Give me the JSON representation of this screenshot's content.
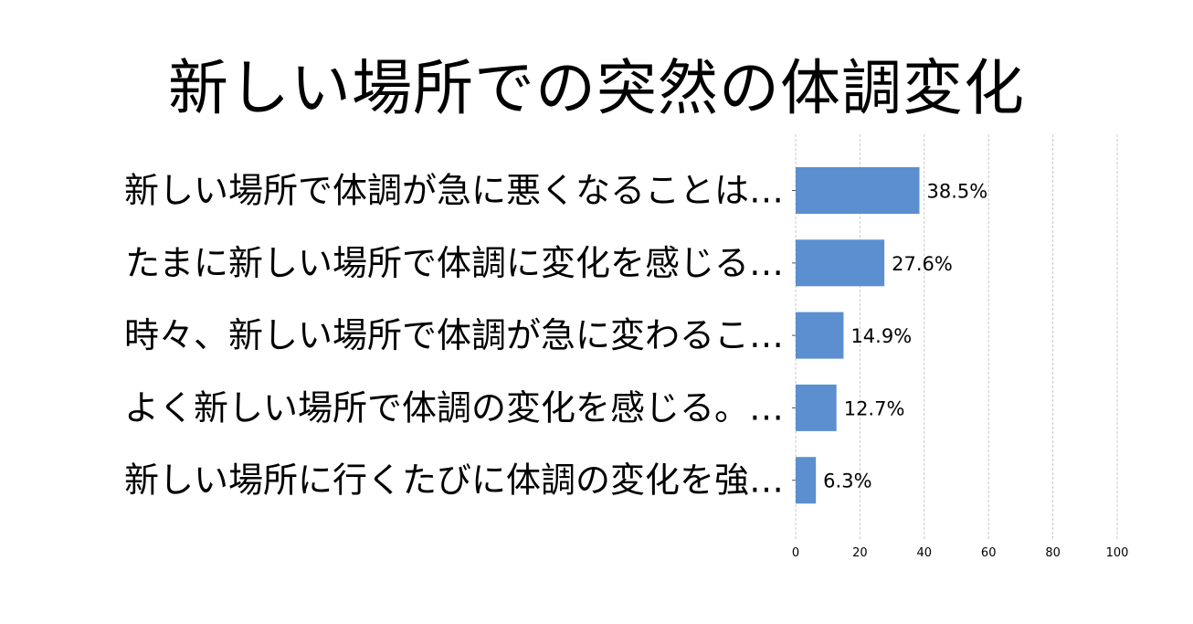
{
  "chart_data": {
    "type": "bar",
    "orientation": "horizontal",
    "title": "新しい場所での突然の体調変化",
    "categories": [
      "新しい場所で体調が急に悪くなることは…",
      "たまに新しい場所で体調に変化を感じる…",
      "時々、新しい場所で体調が急に変わるこ…",
      "よく新しい場所で体調の変化を感じる。…",
      "新しい場所に行くたびに体調の変化を強…"
    ],
    "values": [
      38.5,
      27.6,
      14.9,
      12.7,
      6.3
    ],
    "value_labels": [
      "38.5%",
      "27.6%",
      "14.9%",
      "12.7%",
      "6.3%"
    ],
    "xlim": [
      0,
      100
    ],
    "xticks": [
      "0",
      "20",
      "40",
      "60",
      "80",
      "100"
    ],
    "grid": "vertical, dashed",
    "bar_color": "#5b8fd0",
    "grid_color": "#c8c8c8",
    "xlabel": "",
    "ylabel": ""
  }
}
